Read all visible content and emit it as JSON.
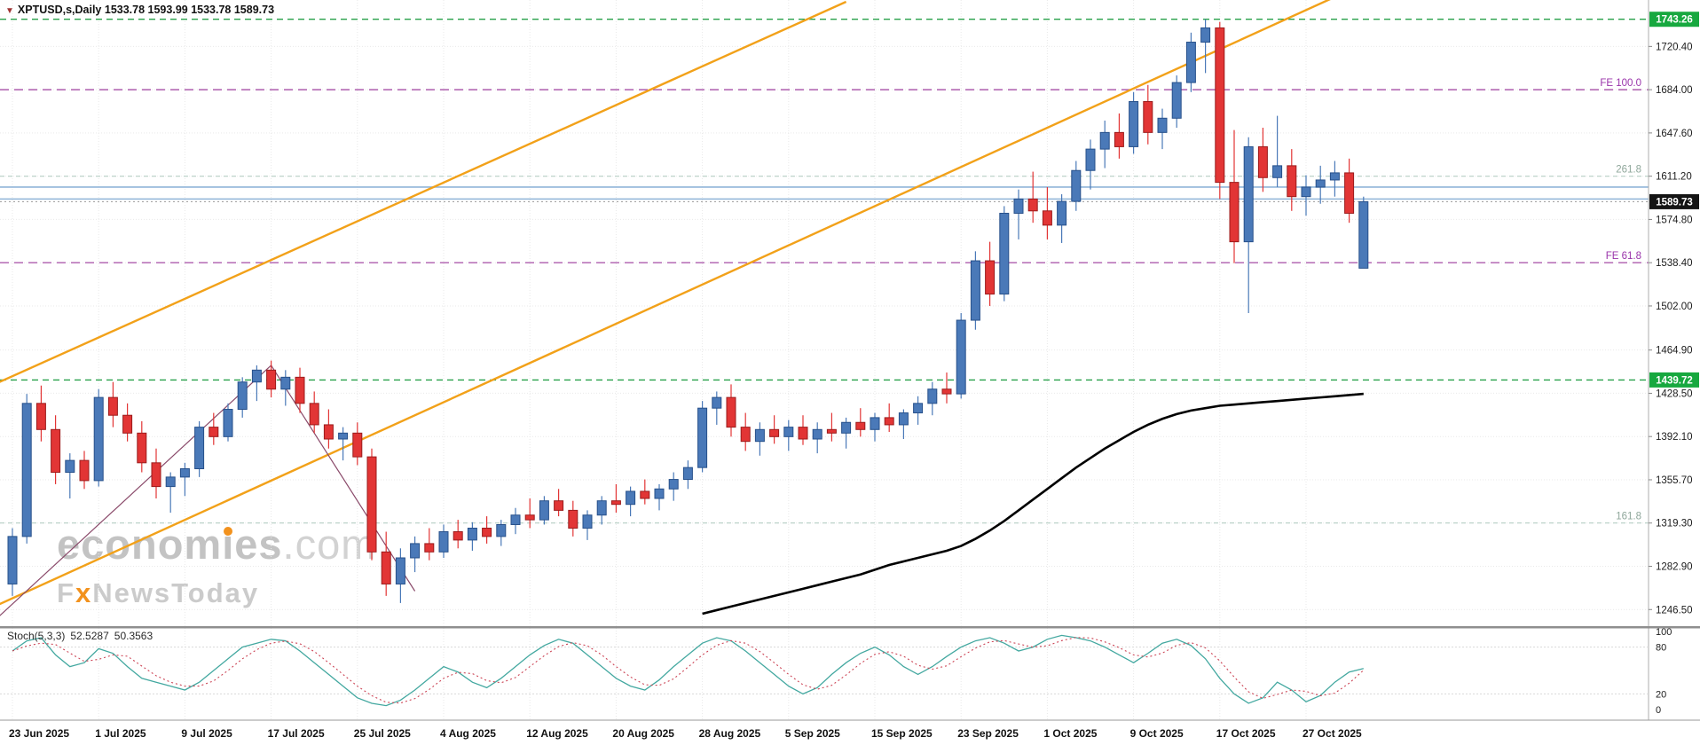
{
  "header": {
    "dropdown_icon": "▼",
    "symbol": "XPTUSD,s,Daily",
    "ohlc": "1533.78 1593.99 1533.78 1589.73"
  },
  "watermark": {
    "brand_pre": "econom",
    "brand_i": "i",
    "brand_post": "es",
    "brand_suffix": ".com",
    "sub_pre": "F",
    "sub_x": "x",
    "sub_post": "NewsToday"
  },
  "stoch_header": {
    "name": "Stoch(5,3,3)",
    "k": "52.5287",
    "d": "50.3563"
  },
  "chart_data": {
    "type": "candlestick",
    "title": "XPTUSD Daily chart with Fibonacci expansion levels, trend channel, moving average and Stochastic(5,3,3)",
    "symbol": "XPTUSD",
    "timeframe": "Daily",
    "last_ohlc": {
      "open": 1533.78,
      "high": 1593.99,
      "low": 1533.78,
      "close": 1589.73
    },
    "ylim": [
      1237,
      1755
    ],
    "price_ticks": [
      "1720.40",
      "1684.00",
      "1647.60",
      "1611.20",
      "1574.80",
      "1538.40",
      "1502.00",
      "1464.90",
      "1428.50",
      "1392.10",
      "1355.70",
      "1319.30",
      "1282.90",
      "1246.50"
    ],
    "x_labels": [
      {
        "i": 0,
        "label": "23 Jun 2025"
      },
      {
        "i": 6,
        "label": "1 Jul 2025"
      },
      {
        "i": 12,
        "label": "9 Jul 2025"
      },
      {
        "i": 18,
        "label": "17 Jul 2025"
      },
      {
        "i": 24,
        "label": "25 Jul 2025"
      },
      {
        "i": 30,
        "label": "4 Aug 2025"
      },
      {
        "i": 36,
        "label": "12 Aug 2025"
      },
      {
        "i": 42,
        "label": "20 Aug 2025"
      },
      {
        "i": 48,
        "label": "28 Aug 2025"
      },
      {
        "i": 54,
        "label": "5 Sep 2025"
      },
      {
        "i": 60,
        "label": "15 Sep 2025"
      },
      {
        "i": 66,
        "label": "23 Sep 2025"
      },
      {
        "i": 72,
        "label": "1 Oct 2025"
      },
      {
        "i": 78,
        "label": "9 Oct 2025"
      },
      {
        "i": 84,
        "label": "17 Oct 2025"
      },
      {
        "i": 90,
        "label": "27 Oct 2025"
      }
    ],
    "candles": [
      [
        1268,
        1315,
        1258,
        1308
      ],
      [
        1308,
        1428,
        1302,
        1420
      ],
      [
        1420,
        1435,
        1388,
        1398
      ],
      [
        1398,
        1410,
        1352,
        1362
      ],
      [
        1362,
        1378,
        1340,
        1372
      ],
      [
        1372,
        1380,
        1348,
        1355
      ],
      [
        1355,
        1432,
        1350,
        1425
      ],
      [
        1425,
        1438,
        1400,
        1410
      ],
      [
        1410,
        1420,
        1388,
        1395
      ],
      [
        1395,
        1405,
        1362,
        1370
      ],
      [
        1370,
        1382,
        1340,
        1350
      ],
      [
        1350,
        1362,
        1328,
        1358
      ],
      [
        1358,
        1370,
        1342,
        1365
      ],
      [
        1365,
        1405,
        1358,
        1400
      ],
      [
        1400,
        1412,
        1385,
        1392
      ],
      [
        1392,
        1420,
        1388,
        1415
      ],
      [
        1415,
        1442,
        1408,
        1438
      ],
      [
        1438,
        1452,
        1422,
        1448
      ],
      [
        1448,
        1456,
        1425,
        1432
      ],
      [
        1432,
        1448,
        1418,
        1442
      ],
      [
        1442,
        1450,
        1412,
        1420
      ],
      [
        1420,
        1430,
        1395,
        1402
      ],
      [
        1402,
        1415,
        1382,
        1390
      ],
      [
        1390,
        1400,
        1372,
        1395
      ],
      [
        1395,
        1404,
        1368,
        1375
      ],
      [
        1375,
        1382,
        1288,
        1295
      ],
      [
        1295,
        1312,
        1258,
        1268
      ],
      [
        1268,
        1298,
        1252,
        1290
      ],
      [
        1290,
        1308,
        1278,
        1302
      ],
      [
        1302,
        1315,
        1288,
        1295
      ],
      [
        1295,
        1318,
        1290,
        1312
      ],
      [
        1312,
        1322,
        1298,
        1305
      ],
      [
        1305,
        1320,
        1296,
        1315
      ],
      [
        1315,
        1325,
        1302,
        1308
      ],
      [
        1308,
        1322,
        1300,
        1318
      ],
      [
        1318,
        1332,
        1310,
        1326
      ],
      [
        1326,
        1340,
        1315,
        1322
      ],
      [
        1322,
        1342,
        1318,
        1338
      ],
      [
        1338,
        1348,
        1325,
        1330
      ],
      [
        1330,
        1338,
        1308,
        1315
      ],
      [
        1315,
        1330,
        1305,
        1326
      ],
      [
        1326,
        1342,
        1318,
        1338
      ],
      [
        1338,
        1352,
        1328,
        1335
      ],
      [
        1335,
        1350,
        1325,
        1346
      ],
      [
        1346,
        1356,
        1335,
        1340
      ],
      [
        1340,
        1352,
        1330,
        1348
      ],
      [
        1348,
        1362,
        1338,
        1356
      ],
      [
        1356,
        1372,
        1348,
        1366
      ],
      [
        1366,
        1422,
        1362,
        1416
      ],
      [
        1416,
        1430,
        1402,
        1425
      ],
      [
        1425,
        1436,
        1392,
        1400
      ],
      [
        1400,
        1412,
        1380,
        1388
      ],
      [
        1388,
        1404,
        1376,
        1398
      ],
      [
        1398,
        1410,
        1386,
        1392
      ],
      [
        1392,
        1406,
        1380,
        1400
      ],
      [
        1400,
        1410,
        1385,
        1390
      ],
      [
        1390,
        1404,
        1378,
        1398
      ],
      [
        1398,
        1412,
        1388,
        1395
      ],
      [
        1395,
        1408,
        1382,
        1404
      ],
      [
        1404,
        1416,
        1392,
        1398
      ],
      [
        1398,
        1412,
        1388,
        1408
      ],
      [
        1408,
        1420,
        1396,
        1402
      ],
      [
        1402,
        1415,
        1390,
        1412
      ],
      [
        1412,
        1426,
        1402,
        1420
      ],
      [
        1420,
        1438,
        1410,
        1432
      ],
      [
        1432,
        1446,
        1420,
        1428
      ],
      [
        1428,
        1496,
        1424,
        1490
      ],
      [
        1490,
        1548,
        1482,
        1540
      ],
      [
        1540,
        1556,
        1502,
        1512
      ],
      [
        1512,
        1586,
        1506,
        1580
      ],
      [
        1580,
        1600,
        1558,
        1592
      ],
      [
        1592,
        1615,
        1572,
        1582
      ],
      [
        1582,
        1602,
        1558,
        1570
      ],
      [
        1570,
        1596,
        1555,
        1590
      ],
      [
        1590,
        1624,
        1582,
        1616
      ],
      [
        1616,
        1642,
        1600,
        1634
      ],
      [
        1634,
        1658,
        1618,
        1648
      ],
      [
        1648,
        1664,
        1626,
        1636
      ],
      [
        1636,
        1682,
        1630,
        1674
      ],
      [
        1674,
        1688,
        1638,
        1648
      ],
      [
        1648,
        1668,
        1634,
        1660
      ],
      [
        1660,
        1696,
        1652,
        1690
      ],
      [
        1690,
        1732,
        1682,
        1724
      ],
      [
        1724,
        1743.26,
        1698,
        1736
      ],
      [
        1736,
        1741,
        1592,
        1606
      ],
      [
        1606,
        1650,
        1538,
        1556
      ],
      [
        1556,
        1644,
        1496,
        1636
      ],
      [
        1636,
        1652,
        1598,
        1610
      ],
      [
        1610,
        1662,
        1602,
        1620
      ],
      [
        1620,
        1634,
        1582,
        1594
      ],
      [
        1594,
        1612,
        1578,
        1602
      ],
      [
        1602,
        1620,
        1588,
        1608
      ],
      [
        1608,
        1624,
        1594,
        1614
      ],
      [
        1614,
        1626,
        1572,
        1580
      ],
      [
        1533.78,
        1593.99,
        1533.78,
        1589.73
      ]
    ],
    "levels": [
      {
        "name": "high-level-line",
        "price": 1743.26,
        "style": "green_dash",
        "badge": "1743.26",
        "badge_bg": "#17a83f"
      },
      {
        "name": "fe-100-line",
        "price": 1684.0,
        "style": "purple_dash",
        "label": "FE 100.0",
        "label_color": "#9933aa"
      },
      {
        "name": "ratio-261-line",
        "price": 1611.2,
        "style": "teal_dash",
        "label": "261.8",
        "label_color": "#8fa79b"
      },
      {
        "name": "resistance-line-upper",
        "price": 1602.0,
        "style": "blue_solid"
      },
      {
        "name": "resistance-line-lower",
        "price": 1592.0,
        "style": "blue_solid"
      },
      {
        "name": "current-price-line",
        "price": 1589.73,
        "style": "gray_dot",
        "badge": "1589.73",
        "badge_bg": "#141414"
      },
      {
        "name": "fe-61-8-line",
        "price": 1538.4,
        "style": "purple_dash",
        "label": "FE 61.8",
        "label_color": "#9933aa"
      },
      {
        "name": "support-level-line",
        "price": 1439.72,
        "style": "green_dash",
        "badge": "1439.72",
        "badge_bg": "#17a83f"
      },
      {
        "name": "ratio-161-line",
        "price": 1319.3,
        "style": "teal_dash",
        "label": "161.8",
        "label_color": "#8fa79b"
      }
    ],
    "channel": [
      {
        "i1": -2,
        "p1": 1432,
        "i2": 58,
        "p2": 1758
      },
      {
        "i1": -2,
        "p1": 1245,
        "i2": 92,
        "p2": 1762
      }
    ],
    "zigzag": [
      {
        "i": -1,
        "p": 1240
      },
      {
        "i": 18,
        "p": 1452
      },
      {
        "i": 28,
        "p": 1262
      }
    ],
    "ma": {
      "start_index": 48,
      "values": [
        1243,
        1246,
        1249,
        1252,
        1255,
        1258,
        1261,
        1264,
        1267,
        1270,
        1273,
        1276,
        1280,
        1284,
        1287,
        1290,
        1293,
        1296,
        1300,
        1306,
        1313,
        1321,
        1330,
        1339,
        1348,
        1357,
        1366,
        1374,
        1382,
        1389,
        1396,
        1402,
        1407,
        1411,
        1414,
        1416,
        1418,
        1419,
        1420,
        1421,
        1422,
        1423,
        1424,
        1425,
        1426,
        1427,
        1428
      ]
    },
    "stochastic": {
      "readout_k": 52.5287,
      "readout_d": 50.3563,
      "scale_labels": [
        "100",
        "80",
        "20",
        "0"
      ],
      "scale_values": [
        100,
        80,
        20,
        0
      ],
      "guides": [
        80,
        20
      ],
      "k": [
        75,
        88,
        92,
        70,
        55,
        60,
        78,
        72,
        55,
        40,
        35,
        30,
        25,
        35,
        50,
        65,
        80,
        85,
        90,
        88,
        75,
        60,
        45,
        30,
        15,
        8,
        5,
        12,
        25,
        40,
        55,
        48,
        35,
        28,
        40,
        55,
        70,
        82,
        90,
        85,
        70,
        55,
        40,
        30,
        25,
        38,
        55,
        70,
        85,
        92,
        88,
        75,
        60,
        45,
        30,
        20,
        28,
        45,
        60,
        72,
        80,
        70,
        55,
        45,
        55,
        68,
        80,
        88,
        92,
        85,
        75,
        80,
        90,
        95,
        92,
        88,
        80,
        70,
        60,
        72,
        85,
        90,
        82,
        65,
        40,
        20,
        8,
        15,
        35,
        25,
        10,
        18,
        35,
        48,
        52.5
      ],
      "d": [
        75,
        81.5,
        85,
        83.3,
        72.3,
        61.7,
        64.3,
        70,
        68.3,
        55.7,
        43.3,
        35,
        30,
        30,
        36.7,
        50,
        65,
        76.7,
        85,
        87.7,
        84.3,
        74.3,
        60,
        45,
        30,
        17.7,
        9.3,
        8.3,
        14,
        25.7,
        40,
        47.7,
        46,
        37,
        34.3,
        41,
        55,
        69,
        80.7,
        85.7,
        81.7,
        70,
        55,
        41.7,
        31.7,
        31,
        39.3,
        54.3,
        70,
        82.3,
        88.3,
        85,
        74.3,
        60,
        45,
        31.7,
        26,
        31,
        44.3,
        59,
        70.7,
        74,
        68.3,
        56.7,
        51.7,
        56,
        67.7,
        78.7,
        86.7,
        88.3,
        84,
        80,
        81.7,
        88.3,
        92.3,
        91.7,
        86.7,
        79.3,
        70,
        67.3,
        72.3,
        82.3,
        85.7,
        79,
        62.3,
        41.7,
        22.7,
        14.3,
        19.3,
        25,
        23.3,
        17.7,
        21,
        33.7,
        50.4
      ]
    },
    "colors": {
      "bull": "#4a79b8",
      "bull_edge": "#27508a",
      "bear": "#e23535",
      "bear_edge": "#9b1c1c",
      "channel": "#f2a119",
      "ma": "#000000",
      "zigzag": "#8a4a6a",
      "stoch_k": "#43a8a0",
      "stoch_d": "#cc4455",
      "level_green": "#27a04a",
      "level_purple": "#ad5cad",
      "level_teal": "#b7cfc5",
      "level_blue": "#8fb4d8",
      "grid": "#e9e9e9"
    }
  }
}
